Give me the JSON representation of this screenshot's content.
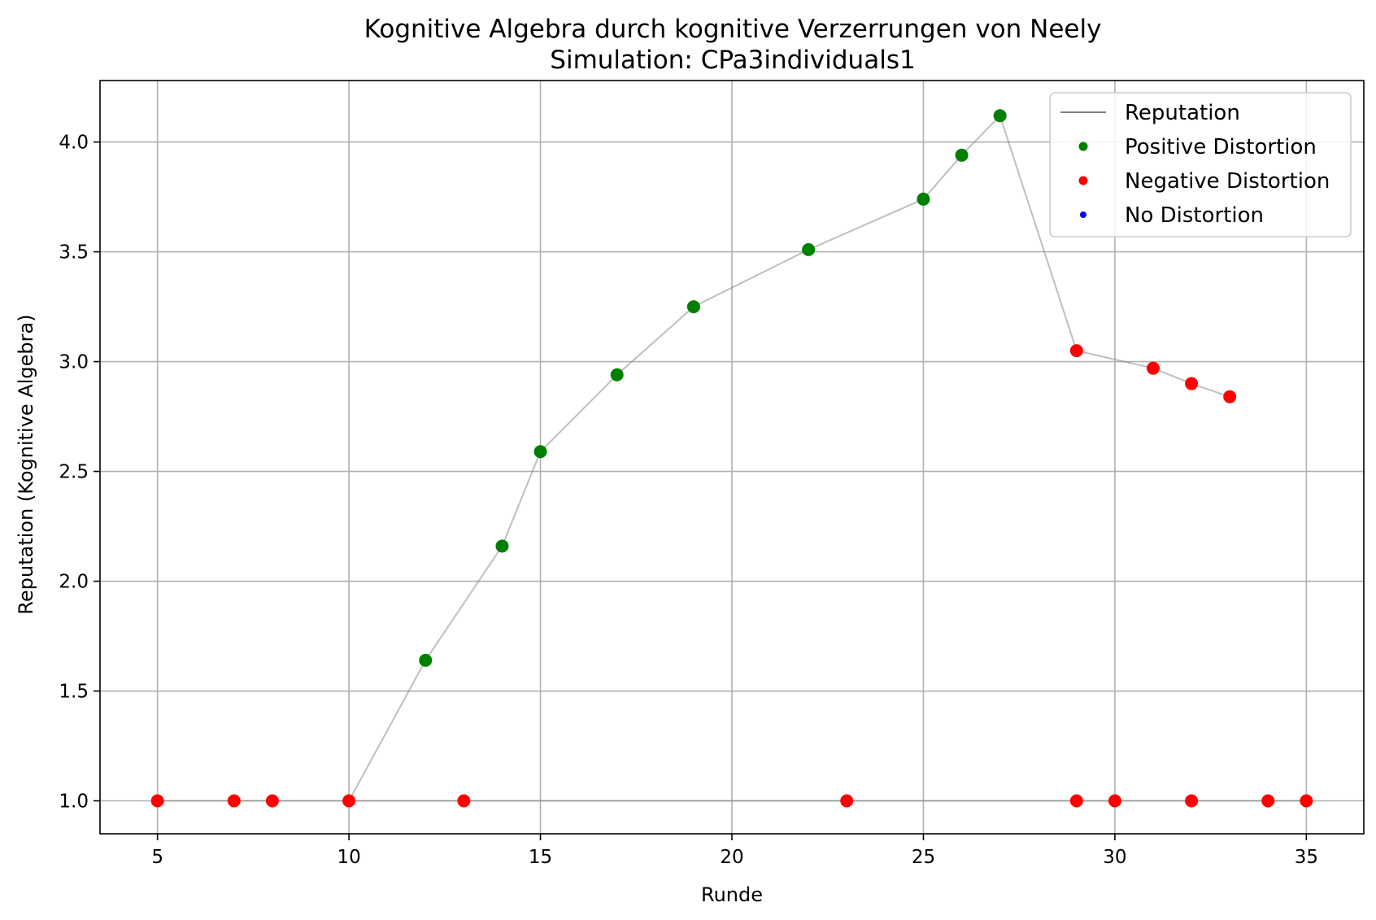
{
  "chart_data": {
    "type": "line",
    "title": "Kognitive Algebra durch kognitive Verzerrungen von Neely",
    "subtitle": "Simulation: CPa3individuals1",
    "xlabel": "Runde",
    "ylabel": "Reputation (Kognitive Algebra)",
    "xlim": [
      3.5,
      36.5
    ],
    "ylim": [
      0.85,
      4.28
    ],
    "xticks": [
      5,
      10,
      15,
      20,
      25,
      30,
      35
    ],
    "yticks": [
      1.0,
      1.5,
      2.0,
      2.5,
      3.0,
      3.5,
      4.0
    ],
    "grid": true,
    "legend_position": "top-right",
    "legend": [
      {
        "label": "Reputation",
        "kind": "line",
        "color": "#808080"
      },
      {
        "label": "Positive Distortion",
        "kind": "marker",
        "color": "#008000"
      },
      {
        "label": "Negative Distortion",
        "kind": "marker",
        "color": "#ff0000"
      },
      {
        "label": "No Distortion",
        "kind": "marker",
        "color": "#0000ff"
      }
    ],
    "series": [
      {
        "name": "Reputation",
        "color": "#808080",
        "segments": [
          [
            [
              5,
              1.0
            ],
            [
              7,
              1.0
            ],
            [
              8,
              1.0
            ],
            [
              10,
              1.0
            ],
            [
              13,
              1.0
            ],
            [
              23,
              1.0
            ],
            [
              29,
              1.0
            ],
            [
              30,
              1.0
            ],
            [
              32,
              1.0
            ],
            [
              34,
              1.0
            ],
            [
              35,
              1.0
            ]
          ],
          [
            [
              10,
              1.0
            ],
            [
              12,
              1.64
            ],
            [
              14,
              2.16
            ],
            [
              15,
              2.59
            ],
            [
              17,
              2.94
            ],
            [
              19,
              3.25
            ],
            [
              22,
              3.51
            ],
            [
              25,
              3.74
            ],
            [
              26,
              3.94
            ],
            [
              27,
              4.12
            ],
            [
              29,
              3.05
            ],
            [
              31,
              2.97
            ],
            [
              32,
              2.9
            ],
            [
              33,
              2.84
            ]
          ]
        ]
      },
      {
        "name": "Positive Distortion",
        "color": "#008000",
        "points": [
          [
            12,
            1.64
          ],
          [
            14,
            2.16
          ],
          [
            15,
            2.59
          ],
          [
            17,
            2.94
          ],
          [
            19,
            3.25
          ],
          [
            22,
            3.51
          ],
          [
            25,
            3.74
          ],
          [
            26,
            3.94
          ],
          [
            27,
            4.12
          ]
        ]
      },
      {
        "name": "Negative Distortion",
        "color": "#ff0000",
        "points": [
          [
            5,
            1.0
          ],
          [
            7,
            1.0
          ],
          [
            8,
            1.0
          ],
          [
            10,
            1.0
          ],
          [
            13,
            1.0
          ],
          [
            23,
            1.0
          ],
          [
            29,
            1.0
          ],
          [
            30,
            1.0
          ],
          [
            32,
            1.0
          ],
          [
            34,
            1.0
          ],
          [
            35,
            1.0
          ],
          [
            29,
            3.05
          ],
          [
            31,
            2.97
          ],
          [
            32,
            2.9
          ],
          [
            33,
            2.84
          ]
        ]
      },
      {
        "name": "No Distortion",
        "color": "#0000ff",
        "points": []
      }
    ]
  }
}
